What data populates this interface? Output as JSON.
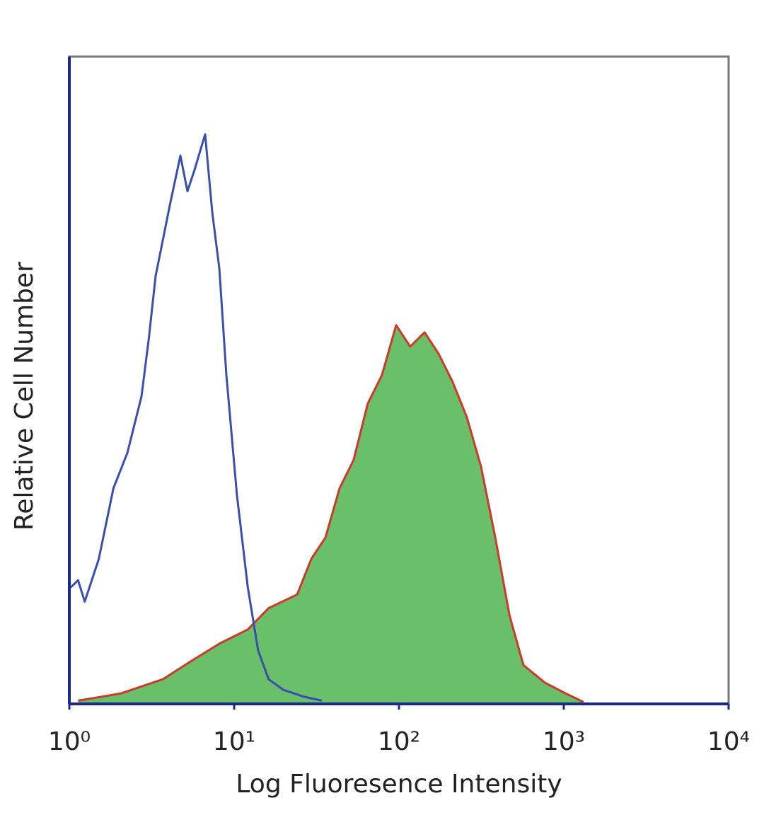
{
  "chart_data": {
    "type": "area",
    "xlabel": "Log Fluoresence Intensity",
    "ylabel": "Relative Cell Number",
    "xscale": "log",
    "xlim": [
      1,
      10000
    ],
    "xticks": [
      {
        "value": 1,
        "label": "10⁰"
      },
      {
        "value": 10,
        "label": "10¹"
      },
      {
        "value": 100,
        "label": "10²"
      },
      {
        "value": 1000,
        "label": "10³"
      },
      {
        "value": 10000,
        "label": "10⁴"
      }
    ],
    "ylim": [
      0,
      100
    ],
    "grid": false,
    "series": [
      {
        "color": "#3a4db0",
        "x": [
          1.02,
          1.13,
          1.24,
          1.51,
          1.85,
          2.25,
          2.74,
          3.03,
          3.34,
          4.07,
          4.72,
          5.21,
          5.75,
          6.67,
          7.36,
          8.13,
          8.97,
          10.4,
          12.1,
          14.0,
          16.2,
          19.8,
          26.6,
          34.0
        ],
        "values": [
          18.0,
          19.1,
          15.8,
          22.4,
          33.3,
          38.8,
          47.5,
          56.3,
          66.1,
          77.0,
          84.7,
          79.2,
          82.5,
          88.0,
          76.0,
          67.2,
          50.8,
          32.2,
          18.0,
          8.2,
          3.8,
          2.2,
          1.1,
          0.5
        ]
      },
      {
        "color": "#cc3a2a",
        "fill": "#6abf69",
        "x": [
          1.13,
          2.04,
          3.69,
          5.47,
          8.13,
          12.1,
          16.2,
          24.1,
          29.4,
          35.8,
          43.6,
          53.1,
          64.7,
          78.8,
          96.1,
          117,
          143,
          174,
          212,
          258,
          315,
          384,
          468,
          569,
          766,
          1030,
          1318
        ],
        "values": [
          0.5,
          1.6,
          3.8,
          6.6,
          9.3,
          11.5,
          14.8,
          16.9,
          22.4,
          25.7,
          33.3,
          37.7,
          46.4,
          50.8,
          58.5,
          55.2,
          57.4,
          54.1,
          49.7,
          44.3,
          36.6,
          25.7,
          13.7,
          6.0,
          3.3,
          1.6,
          0.3
        ]
      }
    ]
  }
}
